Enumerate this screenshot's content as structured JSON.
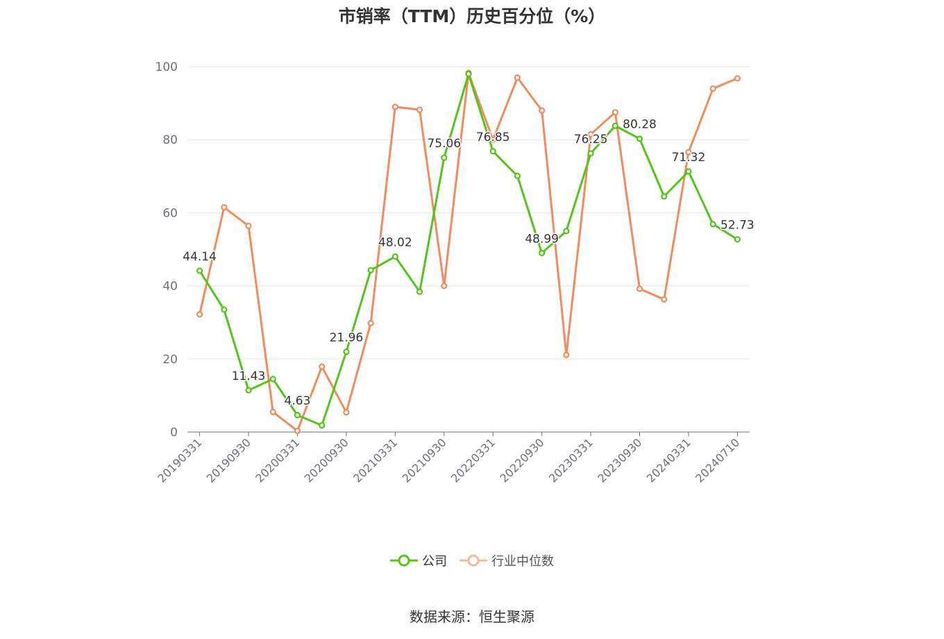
{
  "chart_data": {
    "type": "line",
    "title": "市销率（TTM）历史百分位（%）",
    "ylim": [
      0,
      100
    ],
    "yticks": [
      0,
      20,
      40,
      60,
      80,
      100
    ],
    "grid": true,
    "legend_position": "bottom-center",
    "x": [
      "20190331",
      "20190630",
      "20190930",
      "20191231",
      "20200331",
      "20200630",
      "20200930",
      "20201231",
      "20210331",
      "20210630",
      "20210930",
      "20211231",
      "20220331",
      "20220630",
      "20220930",
      "20221231",
      "20230331",
      "20230630",
      "20230930",
      "20231231",
      "20240331",
      "20240630",
      "20240710"
    ],
    "xtick_labels": [
      "20190331",
      "20190930",
      "20200331",
      "20200930",
      "20210331",
      "20210930",
      "20220331",
      "20220930",
      "20230331",
      "20230930",
      "20240331",
      "20240710"
    ],
    "series": [
      {
        "name": "公司",
        "color": "#52c41a",
        "values": [
          44.14,
          33.5,
          11.43,
          14.5,
          4.63,
          1.8,
          21.96,
          44.3,
          48.02,
          38.4,
          75.06,
          98.0,
          76.85,
          70.1,
          48.99,
          55.0,
          76.25,
          83.8,
          80.28,
          64.5,
          71.32,
          56.9,
          52.73
        ],
        "point_labels": [
          "44.14",
          "",
          "11.43",
          "",
          "4.63",
          "",
          "21.96",
          "",
          "48.02",
          "",
          "75.06",
          "",
          "76.85",
          "",
          "48.99",
          "",
          "76.25",
          "",
          "80.28",
          "",
          "71.32",
          "",
          "52.73"
        ]
      },
      {
        "name": "行业中位数",
        "color": "#f28b5b",
        "values": [
          32.2,
          61.5,
          56.4,
          5.5,
          0.3,
          17.9,
          5.4,
          29.8,
          89.0,
          88.2,
          40.0,
          98.3,
          80.0,
          97.0,
          88.0,
          21.1,
          81.5,
          87.5,
          39.2,
          36.3,
          76.6,
          94.0,
          96.8
        ]
      }
    ]
  },
  "legend": {
    "company_label": "公司",
    "industry_label": "行业中位数"
  },
  "source_text": "数据来源：恒生聚源"
}
